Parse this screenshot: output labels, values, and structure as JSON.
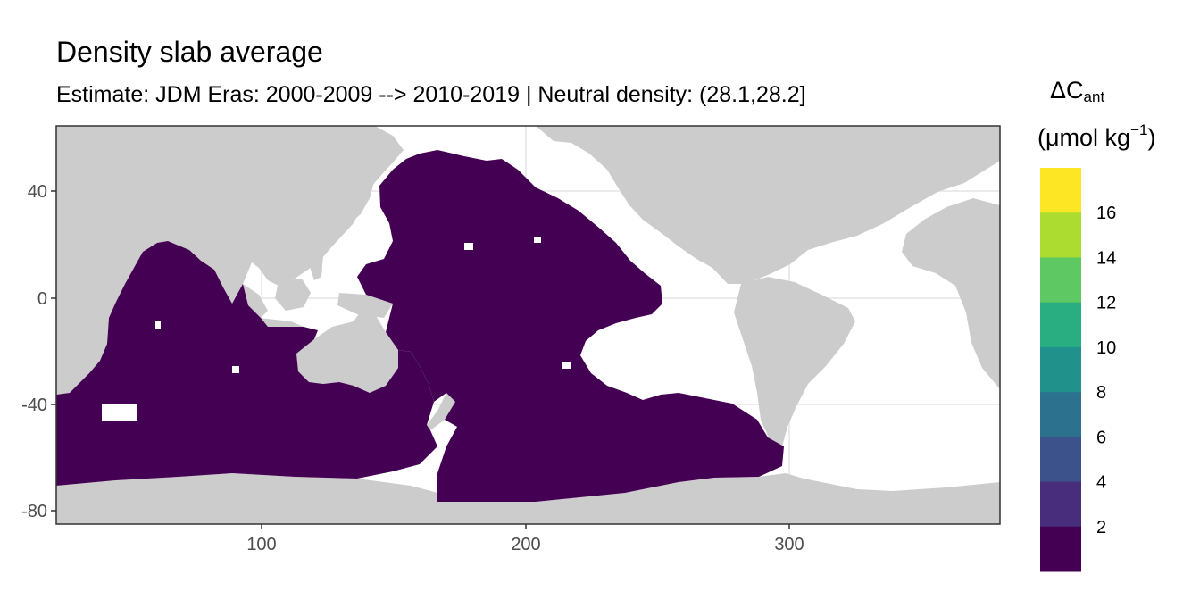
{
  "title": "Density slab average",
  "subtitle": "Estimate: JDM Eras: 2000-2009 --> 2010-2019 | Neutral density: (28.1,28.2]",
  "legend": {
    "title_symbol": "ΔC",
    "title_subscript": "ant",
    "unit_prefix": "(μmol kg",
    "unit_superscript": "−1",
    "unit_suffix": ")",
    "bins": [
      {
        "label": "",
        "color": "#fde725"
      },
      {
        "label": "16",
        "color": "#addc30"
      },
      {
        "label": "14",
        "color": "#5ec962"
      },
      {
        "label": "12",
        "color": "#28ae80"
      },
      {
        "label": "10",
        "color": "#21918c"
      },
      {
        "label": "8",
        "color": "#2c728e"
      },
      {
        "label": "6",
        "color": "#3b528b"
      },
      {
        "label": "4",
        "color": "#472d7b"
      },
      {
        "label": "2",
        "color": "#440154"
      }
    ]
  },
  "axes": {
    "x_ticks": [
      "100",
      "200",
      "300"
    ],
    "y_ticks": [
      "40",
      "0",
      "-40",
      "-80"
    ]
  },
  "colors": {
    "land": "#cccccc",
    "ocean_no_data": "#ffffff",
    "data_fill": "#440154",
    "grid": "#ebebeb",
    "frame": "#333333"
  }
}
